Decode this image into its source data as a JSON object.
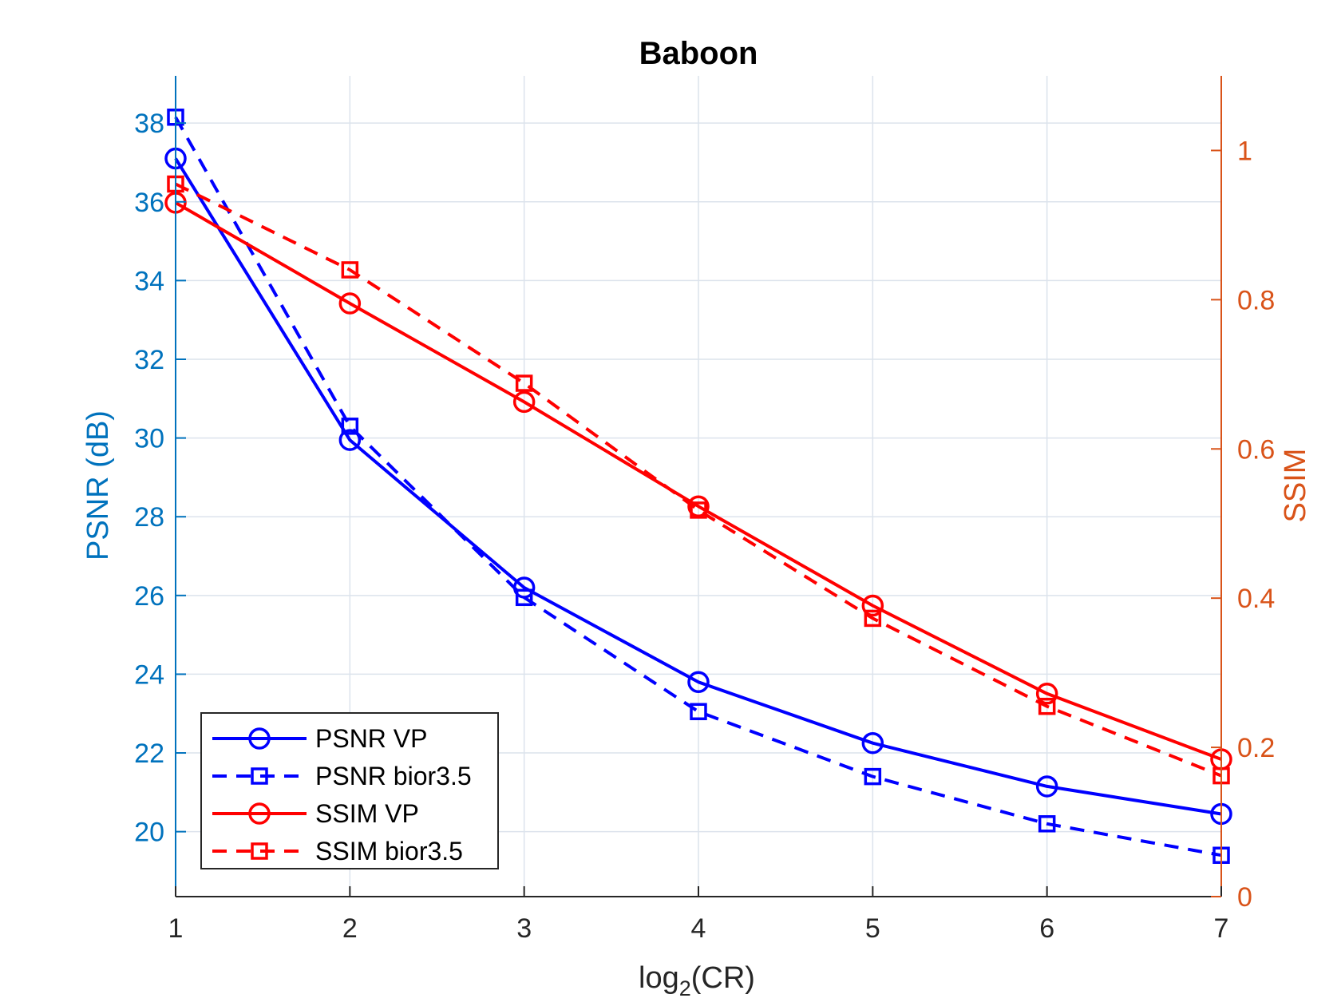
{
  "chart_data": {
    "type": "line",
    "title": "Baboon",
    "xlabel": {
      "base": "log",
      "sub": "2",
      "rest": "(CR)"
    },
    "ylabel_left": "PSNR (dB)",
    "ylabel_right": "SSIM",
    "x": [
      1,
      2,
      3,
      4,
      5,
      6,
      7
    ],
    "xlim": [
      1,
      7
    ],
    "ylim_left": [
      18.35,
      39.2
    ],
    "ylim_right": [
      0,
      1.1
    ],
    "xticks": [
      1,
      2,
      3,
      4,
      5,
      6,
      7
    ],
    "yticks_left": [
      20,
      22,
      24,
      26,
      28,
      30,
      32,
      34,
      36,
      38
    ],
    "yticks_right": [
      0,
      0.2,
      0.4,
      0.6,
      0.8,
      1
    ],
    "ytick_labels_right": [
      "0",
      "0.2",
      "0.4",
      "0.6",
      "0.8",
      "1"
    ],
    "grid": true,
    "legend_position": "bottom-left",
    "colors": {
      "left_axis": "#0072BD",
      "right_axis": "#D95319",
      "psnr": "#0000FF",
      "ssim": "#FF0000",
      "grid": "#DCE3EC",
      "box": "#262626"
    },
    "series": [
      {
        "name": "PSNR VP",
        "axis": "left",
        "color": "psnr",
        "dash": false,
        "marker": "circle",
        "values": [
          37.1,
          29.95,
          26.2,
          23.8,
          22.25,
          21.15,
          20.45
        ]
      },
      {
        "name": "PSNR bior3.5",
        "axis": "left",
        "color": "psnr",
        "dash": true,
        "marker": "square",
        "values": [
          38.15,
          30.3,
          25.95,
          23.05,
          21.4,
          20.2,
          19.4
        ]
      },
      {
        "name": "SSIM VP",
        "axis": "right",
        "color": "ssim",
        "dash": false,
        "marker": "circle",
        "values": [
          0.93,
          0.795,
          0.663,
          0.523,
          0.39,
          0.272,
          0.184
        ]
      },
      {
        "name": "SSIM bior3.5",
        "axis": "right",
        "color": "ssim",
        "dash": true,
        "marker": "square",
        "values": [
          0.955,
          0.84,
          0.688,
          0.518,
          0.373,
          0.255,
          0.162
        ]
      }
    ]
  }
}
